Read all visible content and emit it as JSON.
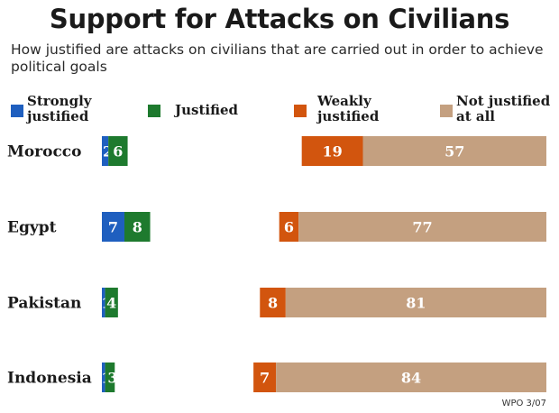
{
  "title": "Support for Attacks on Civilians",
  "subtitle": "How justified are attacks on civilians that are carried out in order to achieve political goals",
  "footer": "WPO 3/07",
  "legend": [
    {
      "line1": "Strongly",
      "line2": "justified",
      "color": "#1f5fbf"
    },
    {
      "line1": "Justified",
      "line2": "",
      "color": "#1e7a2e"
    },
    {
      "line1": "Weakly",
      "line2": "justified",
      "color": "#d2550e"
    },
    {
      "line1": "Not justified",
      "line2": "at all",
      "color": "#c4a080"
    }
  ],
  "chart_data": {
    "type": "bar",
    "orientation": "horizontal",
    "stacked": true,
    "categories": [
      "Morocco",
      "Egypt",
      "Pakistan",
      "Indonesia"
    ],
    "series": [
      {
        "name": "Strongly justified",
        "values": [
          2,
          7,
          1,
          1
        ],
        "color": "#1f5fbf"
      },
      {
        "name": "Justified",
        "values": [
          6,
          8,
          4,
          3
        ],
        "color": "#1e7a2e"
      },
      {
        "name": "Weakly justified",
        "values": [
          19,
          6,
          8,
          7
        ],
        "color": "#d2550e"
      },
      {
        "name": "Not justified at all",
        "values": [
          57,
          77,
          81,
          84
        ],
        "color": "#c4a080"
      }
    ],
    "legend_position": "top",
    "grid": false
  }
}
